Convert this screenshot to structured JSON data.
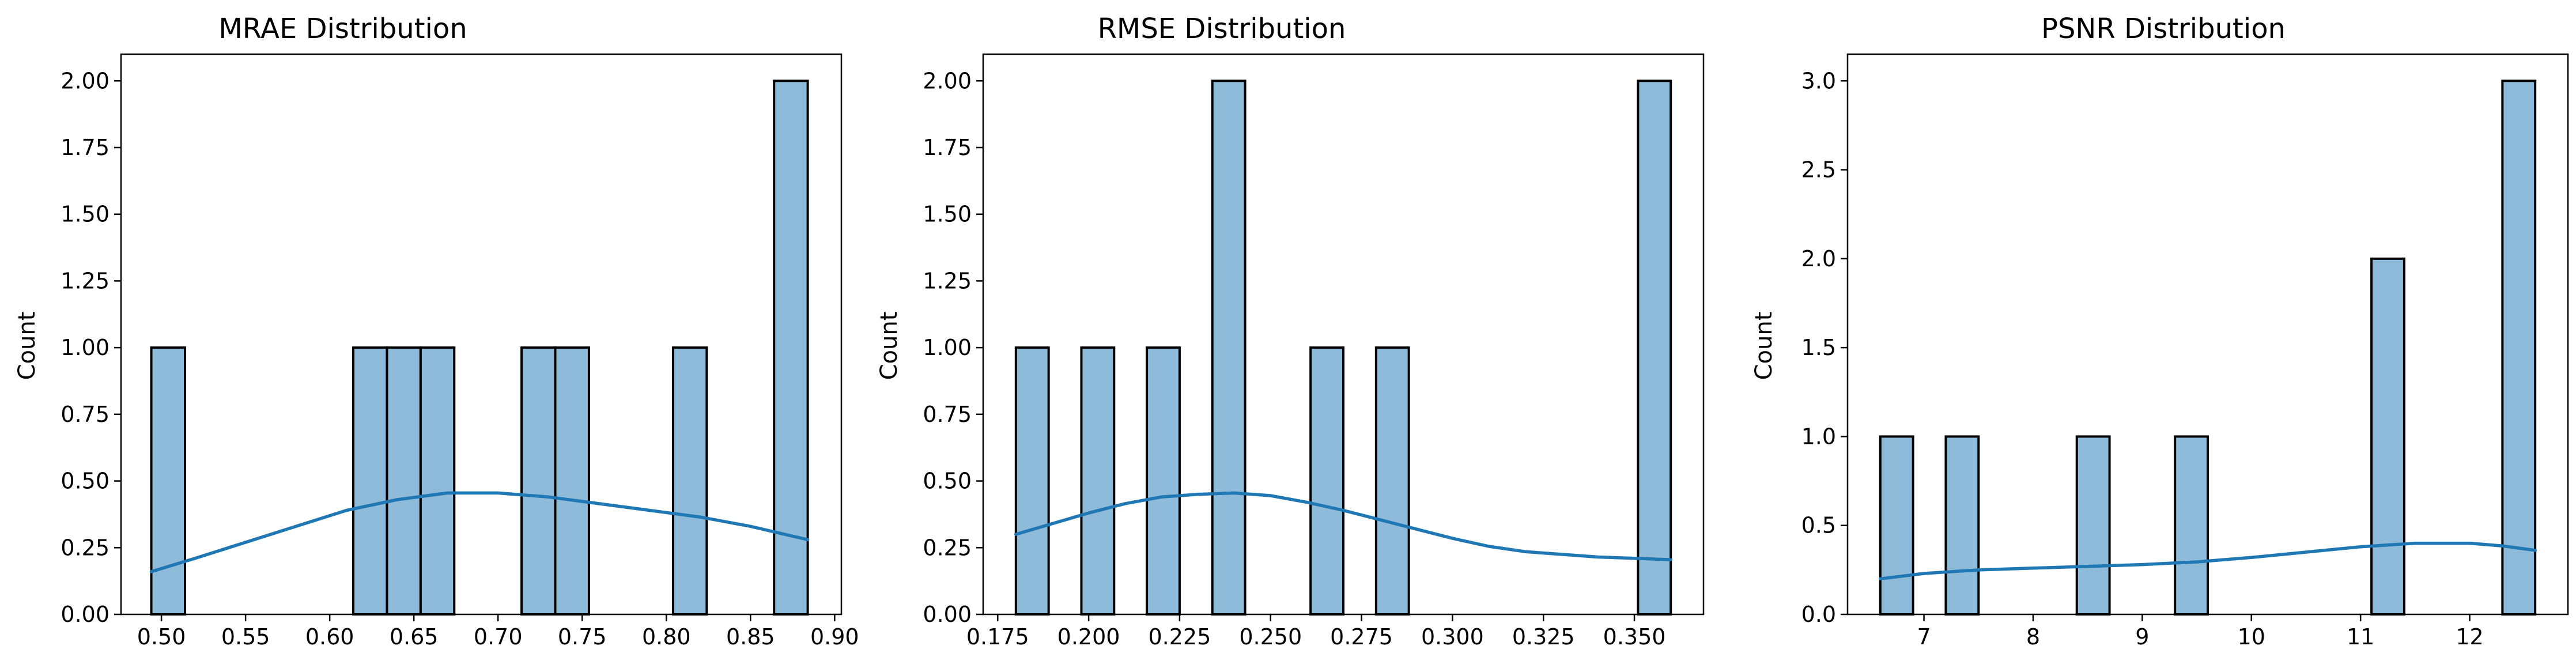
{
  "colors": {
    "bar_fill": "#8fbbda",
    "bar_edge": "#000000",
    "kde_line": "#1f77b4"
  },
  "chart_data": [
    {
      "type": "bar",
      "title": "MRAE Distribution",
      "xlabel": "",
      "ylabel": "Count",
      "xlim": [
        0.476,
        0.904
      ],
      "ylim": [
        0,
        2.1
      ],
      "xticks": [
        0.5,
        0.55,
        0.6,
        0.65,
        0.7,
        0.75,
        0.8,
        0.85,
        0.9
      ],
      "xtick_labels": [
        "0.50",
        "0.55",
        "0.60",
        "0.65",
        "0.70",
        "0.75",
        "0.80",
        "0.85",
        "0.90"
      ],
      "yticks": [
        0,
        0.25,
        0.5,
        0.75,
        1.0,
        1.25,
        1.5,
        1.75,
        2.0
      ],
      "ytick_labels": [
        "0.00",
        "0.25",
        "0.50",
        "0.75",
        "1.00",
        "1.25",
        "1.50",
        "1.75",
        "2.00"
      ],
      "bins": [
        {
          "x0": 0.494,
          "x1": 0.514,
          "count": 1
        },
        {
          "x0": 0.614,
          "x1": 0.634,
          "count": 1
        },
        {
          "x0": 0.634,
          "x1": 0.654,
          "count": 1
        },
        {
          "x0": 0.654,
          "x1": 0.674,
          "count": 1
        },
        {
          "x0": 0.714,
          "x1": 0.734,
          "count": 1
        },
        {
          "x0": 0.734,
          "x1": 0.754,
          "count": 1
        },
        {
          "x0": 0.804,
          "x1": 0.824,
          "count": 1
        },
        {
          "x0": 0.864,
          "x1": 0.884,
          "count": 2
        }
      ],
      "kde": {
        "x": [
          0.494,
          0.52,
          0.55,
          0.58,
          0.61,
          0.64,
          0.67,
          0.7,
          0.73,
          0.76,
          0.79,
          0.82,
          0.85,
          0.884
        ],
        "y": [
          0.16,
          0.21,
          0.27,
          0.33,
          0.39,
          0.43,
          0.455,
          0.455,
          0.44,
          0.415,
          0.39,
          0.365,
          0.33,
          0.28
        ]
      }
    },
    {
      "type": "bar",
      "title": "RMSE Distribution",
      "xlabel": "",
      "ylabel": "Count",
      "xlim": [
        0.171,
        0.369
      ],
      "ylim": [
        0,
        2.1
      ],
      "xticks": [
        0.175,
        0.2,
        0.225,
        0.25,
        0.275,
        0.3,
        0.325,
        0.35
      ],
      "xtick_labels": [
        "0.175",
        "0.200",
        "0.225",
        "0.250",
        "0.275",
        "0.300",
        "0.325",
        "0.350"
      ],
      "yticks": [
        0,
        0.25,
        0.5,
        0.75,
        1.0,
        1.25,
        1.5,
        1.75,
        2.0
      ],
      "ytick_labels": [
        "0.00",
        "0.25",
        "0.50",
        "0.75",
        "1.00",
        "1.25",
        "1.50",
        "1.75",
        "2.00"
      ],
      "bins": [
        {
          "x0": 0.18,
          "x1": 0.189,
          "count": 1
        },
        {
          "x0": 0.198,
          "x1": 0.207,
          "count": 1
        },
        {
          "x0": 0.216,
          "x1": 0.225,
          "count": 1
        },
        {
          "x0": 0.234,
          "x1": 0.243,
          "count": 2
        },
        {
          "x0": 0.261,
          "x1": 0.27,
          "count": 1
        },
        {
          "x0": 0.279,
          "x1": 0.288,
          "count": 1
        },
        {
          "x0": 0.351,
          "x1": 0.36,
          "count": 2
        }
      ],
      "kde": {
        "x": [
          0.18,
          0.19,
          0.2,
          0.21,
          0.22,
          0.23,
          0.24,
          0.25,
          0.26,
          0.27,
          0.28,
          0.29,
          0.3,
          0.31,
          0.32,
          0.33,
          0.34,
          0.35,
          0.36
        ],
        "y": [
          0.3,
          0.34,
          0.38,
          0.415,
          0.44,
          0.45,
          0.455,
          0.445,
          0.42,
          0.39,
          0.355,
          0.32,
          0.285,
          0.255,
          0.235,
          0.225,
          0.215,
          0.21,
          0.205
        ]
      }
    },
    {
      "type": "bar",
      "title": "PSNR Distribution",
      "xlabel": "",
      "ylabel": "Count",
      "xlim": [
        6.3,
        12.9
      ],
      "ylim": [
        0,
        3.15
      ],
      "xticks": [
        7,
        8,
        9,
        10,
        11,
        12
      ],
      "xtick_labels": [
        "7",
        "8",
        "9",
        "10",
        "11",
        "12"
      ],
      "yticks": [
        0,
        0.5,
        1.0,
        1.5,
        2.0,
        2.5,
        3.0
      ],
      "ytick_labels": [
        "0.0",
        "0.5",
        "1.0",
        "1.5",
        "2.0",
        "2.5",
        "3.0"
      ],
      "bins": [
        {
          "x0": 6.6,
          "x1": 6.9,
          "count": 1
        },
        {
          "x0": 7.2,
          "x1": 7.5,
          "count": 1
        },
        {
          "x0": 8.4,
          "x1": 8.7,
          "count": 1
        },
        {
          "x0": 9.3,
          "x1": 9.6,
          "count": 1
        },
        {
          "x0": 11.1,
          "x1": 11.4,
          "count": 2
        },
        {
          "x0": 12.3,
          "x1": 12.6,
          "count": 3
        }
      ],
      "kde": {
        "x": [
          6.6,
          7.0,
          7.5,
          8.0,
          8.5,
          9.0,
          9.5,
          10.0,
          10.5,
          11.0,
          11.5,
          12.0,
          12.3,
          12.6
        ],
        "y": [
          0.2,
          0.23,
          0.25,
          0.26,
          0.27,
          0.28,
          0.295,
          0.32,
          0.35,
          0.38,
          0.4,
          0.4,
          0.385,
          0.36
        ]
      }
    }
  ]
}
